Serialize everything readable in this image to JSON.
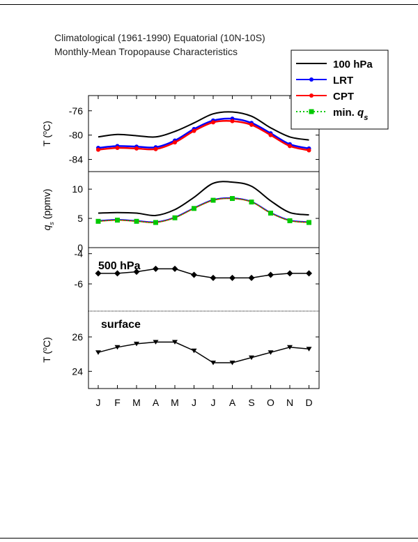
{
  "title": {
    "line1": "Climatological (1961-1990) Equatorial (10N-10S)",
    "line2": "Monthly-Mean Tropopause Characteristics"
  },
  "colors": {
    "p100": "#000000",
    "lrt": "#0000ff",
    "cpt": "#ff0000",
    "minqs": "#00c800",
    "marker_black": "#000000"
  },
  "legend": [
    {
      "key": "p100",
      "label": "100 hPa",
      "style": "line",
      "color": "#000000"
    },
    {
      "key": "lrt",
      "label": "LRT",
      "style": "line-circle",
      "color": "#0000ff"
    },
    {
      "key": "cpt",
      "label": "CPT",
      "style": "line-circle",
      "color": "#ff0000"
    },
    {
      "key": "minqs",
      "label": "min. q",
      "sub": "s",
      "style": "dotted-square",
      "color": "#00c800"
    }
  ],
  "chart_data": [
    {
      "panel": "temperature",
      "type": "line",
      "ylabel": "T (oC)",
      "ylim": [
        -86,
        -73.5
      ],
      "yticks": [
        -76,
        -80,
        -84
      ],
      "x": [
        "J",
        "F",
        "M",
        "A",
        "M",
        "J",
        "J",
        "A",
        "S",
        "O",
        "N",
        "D"
      ],
      "series": [
        {
          "name": "100 hPa",
          "values": [
            -80.3,
            -79.9,
            -80.1,
            -80.3,
            -79.4,
            -78.0,
            -76.5,
            -76.2,
            -76.9,
            -78.8,
            -80.3,
            -80.8
          ]
        },
        {
          "name": "LRT",
          "values": [
            -82.1,
            -81.8,
            -81.9,
            -82.0,
            -80.9,
            -79.0,
            -77.6,
            -77.3,
            -78.0,
            -79.7,
            -81.5,
            -82.2
          ]
        },
        {
          "name": "CPT",
          "values": [
            -82.4,
            -82.1,
            -82.2,
            -82.3,
            -81.2,
            -79.3,
            -77.9,
            -77.7,
            -78.3,
            -80.0,
            -81.8,
            -82.5
          ]
        }
      ]
    },
    {
      "panel": "qs",
      "type": "line",
      "ylabel": "qs (ppmv)",
      "ylim": [
        0,
        13
      ],
      "yticks": [
        10,
        5,
        0
      ],
      "x": [
        "J",
        "F",
        "M",
        "A",
        "M",
        "J",
        "J",
        "A",
        "S",
        "O",
        "N",
        "D"
      ],
      "series": [
        {
          "name": "100 hPa",
          "values": [
            5.9,
            6.0,
            5.9,
            5.5,
            6.5,
            8.6,
            11.0,
            11.2,
            10.5,
            8.0,
            6.0,
            5.6
          ]
        },
        {
          "name": "LRT",
          "values": [
            4.6,
            4.8,
            4.6,
            4.4,
            5.2,
            6.8,
            8.2,
            8.5,
            7.9,
            6.0,
            4.7,
            4.4
          ]
        },
        {
          "name": "CPT",
          "values": [
            4.5,
            4.7,
            4.5,
            4.3,
            5.1,
            6.7,
            8.1,
            8.4,
            7.8,
            5.9,
            4.6,
            4.3
          ]
        },
        {
          "name": "min. qs",
          "values": [
            4.5,
            4.7,
            4.5,
            4.3,
            5.1,
            6.7,
            8.1,
            8.4,
            7.8,
            5.9,
            4.6,
            4.3
          ]
        }
      ]
    },
    {
      "panel": "t500",
      "type": "line",
      "label": "500 hPa",
      "ylim": [
        -7.8,
        -3.6
      ],
      "yticks": [
        -4,
        -6
      ],
      "x": [
        "J",
        "F",
        "M",
        "A",
        "M",
        "J",
        "J",
        "A",
        "S",
        "O",
        "N",
        "D"
      ],
      "series": [
        {
          "values": [
            -5.3,
            -5.3,
            -5.2,
            -5.0,
            -5.0,
            -5.4,
            -5.6,
            -5.6,
            -5.6,
            -5.4,
            -5.3,
            -5.3
          ]
        }
      ]
    },
    {
      "panel": "tsurface",
      "type": "line",
      "label": "surface",
      "ylabel": "T (oC)",
      "ylim": [
        23.0,
        27.5
      ],
      "yticks": [
        26,
        24
      ],
      "x": [
        "J",
        "F",
        "M",
        "A",
        "M",
        "J",
        "J",
        "A",
        "S",
        "O",
        "N",
        "D"
      ],
      "series": [
        {
          "values": [
            25.1,
            25.4,
            25.6,
            25.7,
            25.7,
            25.2,
            24.5,
            24.5,
            24.8,
            25.1,
            25.4,
            25.3
          ]
        }
      ]
    }
  ]
}
